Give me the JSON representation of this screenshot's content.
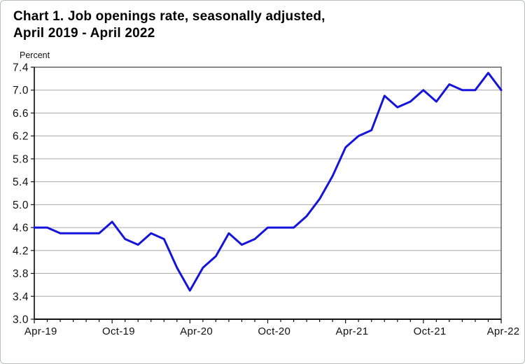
{
  "window": {
    "background": "#ffffff",
    "border_color": "#b9bdc1"
  },
  "chart_data": {
    "type": "line",
    "title_line1": "Chart 1. Job openings rate, seasonally adjusted,",
    "title_line2": "April 2019 - April 2022",
    "unit_label": "Percent",
    "series_name": "Job openings rate, seasonally adjusted",
    "x": [
      "Apr-19",
      "May-19",
      "Jun-19",
      "Jul-19",
      "Aug-19",
      "Sep-19",
      "Oct-19",
      "Nov-19",
      "Dec-19",
      "Jan-20",
      "Feb-20",
      "Mar-20",
      "Apr-20",
      "May-20",
      "Jun-20",
      "Jul-20",
      "Aug-20",
      "Sep-20",
      "Oct-20",
      "Nov-20",
      "Dec-20",
      "Jan-21",
      "Feb-21",
      "Mar-21",
      "Apr-21",
      "May-21",
      "Jun-21",
      "Jul-21",
      "Aug-21",
      "Sep-21",
      "Oct-21",
      "Nov-21",
      "Dec-21",
      "Jan-22",
      "Feb-22",
      "Mar-22",
      "Apr-22"
    ],
    "values": [
      4.6,
      4.6,
      4.5,
      4.5,
      4.5,
      4.5,
      4.7,
      4.4,
      4.3,
      4.5,
      4.4,
      3.9,
      3.5,
      3.9,
      4.1,
      4.5,
      4.3,
      4.4,
      4.6,
      4.6,
      4.6,
      4.8,
      5.1,
      5.5,
      6.0,
      6.2,
      6.3,
      6.9,
      6.7,
      6.8,
      7.0,
      6.8,
      7.1,
      7.0,
      7.0,
      7.3,
      7.0
    ],
    "ylim": [
      3.0,
      7.4
    ],
    "yticks": [
      7.4,
      7.0,
      6.6,
      6.2,
      5.8,
      5.4,
      5.0,
      4.6,
      4.2,
      3.8,
      3.4,
      3.0
    ],
    "xtick_label_indices": [
      0,
      6,
      12,
      18,
      24,
      30,
      36
    ],
    "xtick_labels": [
      "Apr-19",
      "Oct-19",
      "Apr-20",
      "Oct-20",
      "Apr-21",
      "Oct-21",
      "Apr-22"
    ],
    "line_color": "#1414dc",
    "grid": "horizontal",
    "legend": "none"
  }
}
